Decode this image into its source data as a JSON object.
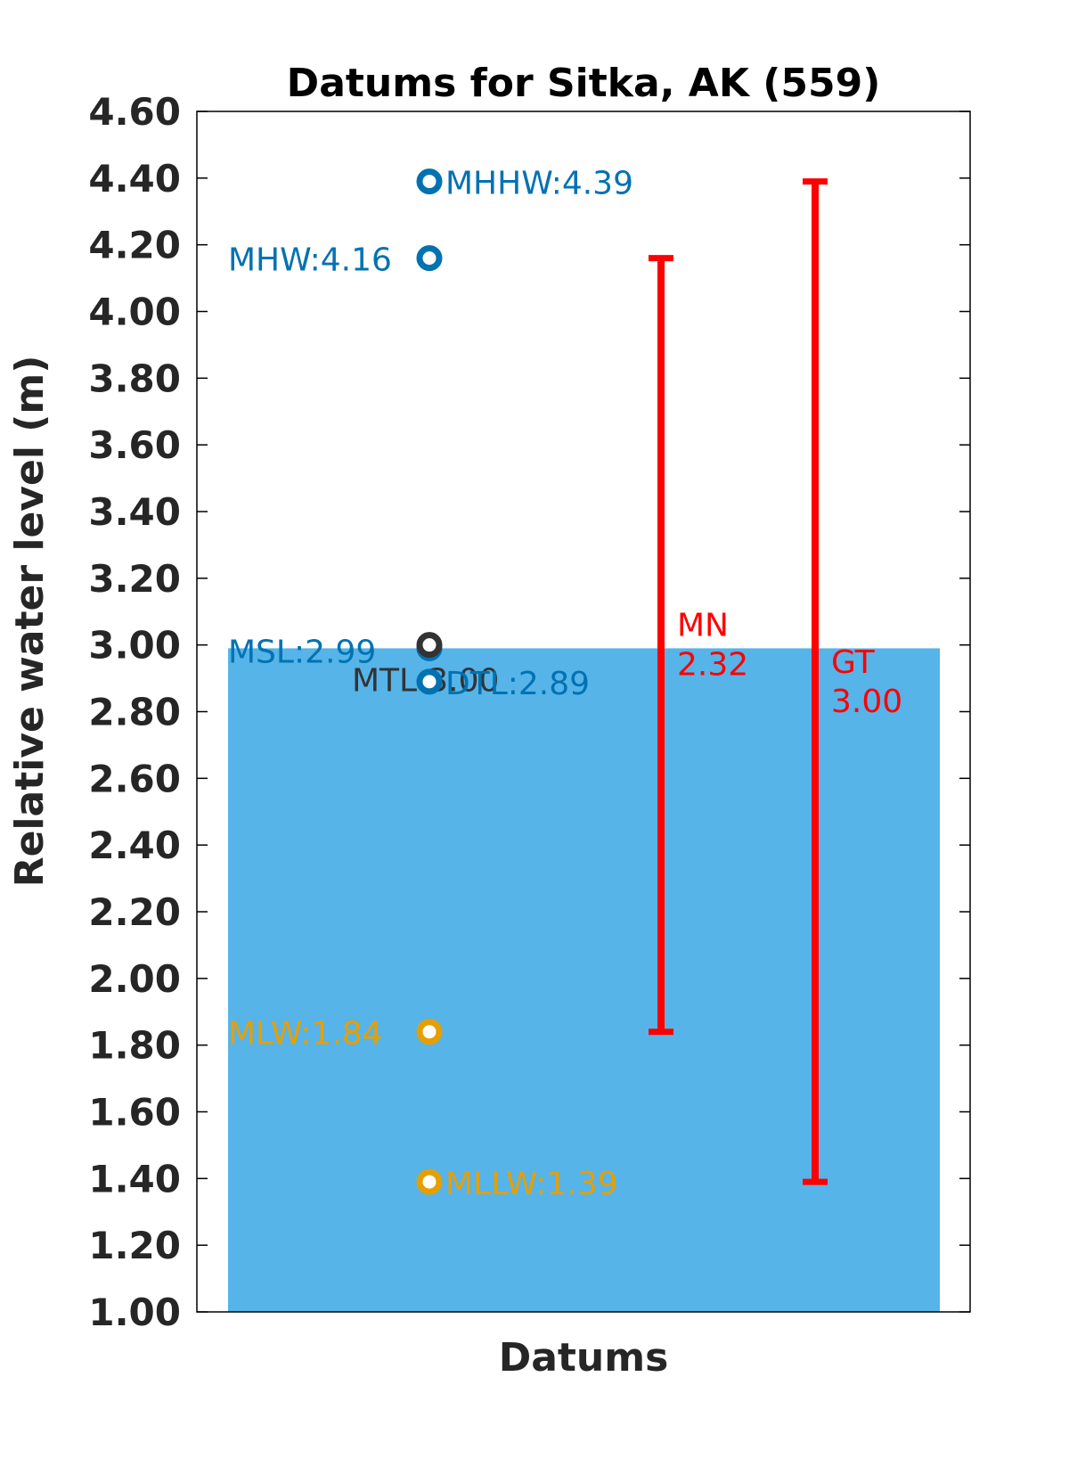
{
  "colors": {
    "bar": "#56b4e9",
    "high": "#0072b2",
    "low": "#e69f00",
    "mid": "#333333",
    "range": "#ff0000",
    "axis": "#262626"
  },
  "chart_data": {
    "type": "bar",
    "title": "Datums for Sitka, AK (559)",
    "xlabel": "Datums",
    "ylabel": "Relative water level (m)",
    "ylim": [
      1.0,
      4.6
    ],
    "yticks": [
      "1.00",
      "1.20",
      "1.40",
      "1.60",
      "1.80",
      "2.00",
      "2.20",
      "2.40",
      "2.60",
      "2.80",
      "3.00",
      "3.20",
      "3.40",
      "3.60",
      "3.80",
      "4.00",
      "4.20",
      "4.40",
      "4.60"
    ],
    "grid": false,
    "bar": {
      "base": 1.0,
      "top": 2.99
    },
    "datums": [
      {
        "name": "MHHW",
        "label": "MHHW:4.39",
        "value": 4.39,
        "color_key": "high",
        "label_side": "right"
      },
      {
        "name": "MHW",
        "label": "MHW:4.16",
        "value": 4.16,
        "color_key": "high",
        "label_side": "left"
      },
      {
        "name": "MSL",
        "label": "MSL:2.99",
        "value": 2.99,
        "color_key": "high",
        "label_side": "left"
      },
      {
        "name": "MTL",
        "label": "MTL:3.00",
        "value": 3.0,
        "color_key": "mid",
        "label_side": "left"
      },
      {
        "name": "DTL",
        "label": "DTL:2.89",
        "value": 2.89,
        "color_key": "high",
        "label_side": "right"
      },
      {
        "name": "MLW",
        "label": "MLW:1.84",
        "value": 1.84,
        "color_key": "low",
        "label_side": "left"
      },
      {
        "name": "MLLW",
        "label": "MLLW:1.39",
        "value": 1.39,
        "color_key": "low",
        "label_side": "right"
      }
    ],
    "ranges": [
      {
        "name": "MN",
        "label_line1": "MN",
        "label_line2": "2.32",
        "low": 1.84,
        "high": 4.16
      },
      {
        "name": "GT",
        "label_line1": "GT",
        "label_line2": "3.00",
        "low": 1.39,
        "high": 4.39
      }
    ]
  }
}
